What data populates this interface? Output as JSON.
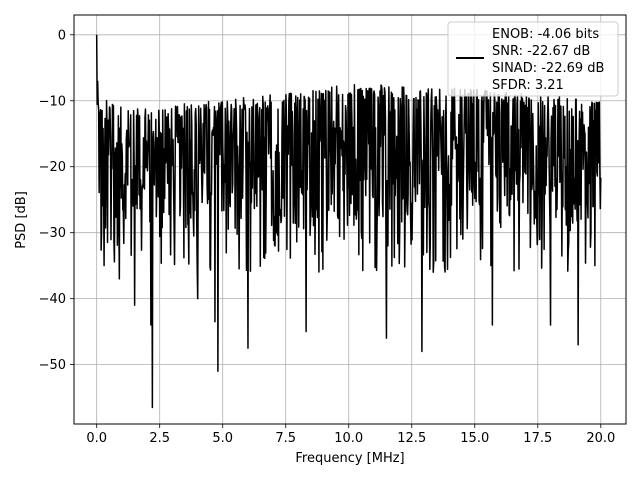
{
  "chart_data": {
    "type": "line",
    "title": "",
    "xlabel": "Frequency [MHz]",
    "ylabel": "PSD [dB]",
    "xlim": [
      -0.9,
      21.0
    ],
    "ylim": [
      -59,
      3
    ],
    "xticks": [
      0.0,
      2.5,
      5.0,
      7.5,
      10.0,
      12.5,
      15.0,
      17.5,
      20.0
    ],
    "xtick_labels": [
      "0.0",
      "2.5",
      "5.0",
      "7.5",
      "10.0",
      "12.5",
      "15.0",
      "17.5",
      "20.0"
    ],
    "yticks": [
      0,
      -10,
      -20,
      -30,
      -40,
      -50
    ],
    "ytick_labels": [
      "0",
      "−10",
      "−20",
      "−30",
      "−40",
      "−50"
    ],
    "grid": true,
    "legend_position": "top-right",
    "legend": {
      "entries": [
        "ENOB: -4.06 bits",
        "SNR: -22.67 dB",
        "SINAD: -22.69 dB",
        "SFDR: 3.21"
      ]
    },
    "series": [
      {
        "color": "#000000",
        "x_range": [
          0.0,
          20.0
        ],
        "points": 1024,
        "envelope_top": [
          [
            0.0,
            0.0
          ],
          [
            0.2,
            -9
          ],
          [
            1.0,
            -11
          ],
          [
            2.5,
            -11
          ],
          [
            5.0,
            -9.5
          ],
          [
            7.5,
            -9
          ],
          [
            10.0,
            -7
          ],
          [
            12.5,
            -8
          ],
          [
            15.0,
            -8
          ],
          [
            17.5,
            -9
          ],
          [
            20.0,
            -10
          ]
        ],
        "typical_band": [
          -28,
          -10
        ],
        "notable_dips": [
          [
            0.3,
            -35
          ],
          [
            0.9,
            -37
          ],
          [
            1.5,
            -41
          ],
          [
            2.15,
            -44
          ],
          [
            2.2,
            -56.5
          ],
          [
            4.0,
            -40
          ],
          [
            4.7,
            -43.5
          ],
          [
            4.8,
            -51
          ],
          [
            6.0,
            -47.5
          ],
          [
            8.3,
            -45
          ],
          [
            11.5,
            -46
          ],
          [
            12.9,
            -48
          ],
          [
            15.7,
            -44
          ],
          [
            18.0,
            -44
          ],
          [
            19.1,
            -47
          ]
        ]
      }
    ]
  }
}
